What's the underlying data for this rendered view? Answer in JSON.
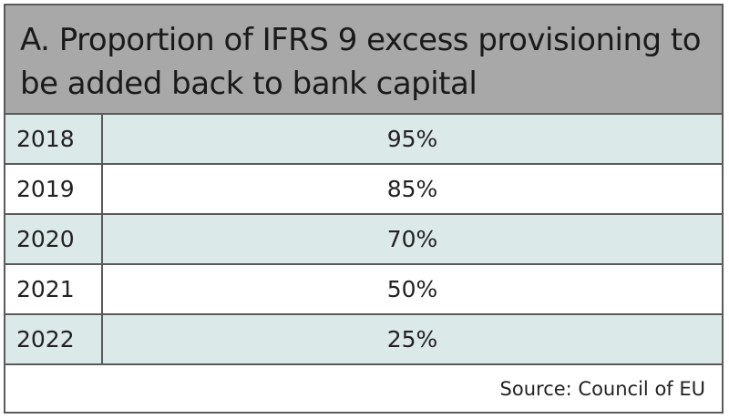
{
  "header": {
    "title": "A. Proportion of IFRS 9 excess provisioning to be added back to bank capital"
  },
  "table": {
    "rows": [
      [
        "2018",
        "95%"
      ],
      [
        "2019",
        "85%"
      ],
      [
        "2020",
        "70%"
      ],
      [
        "2021",
        "50%"
      ],
      [
        "2022",
        "25%"
      ]
    ]
  },
  "footer": {
    "source": "Source: Council of EU"
  }
}
